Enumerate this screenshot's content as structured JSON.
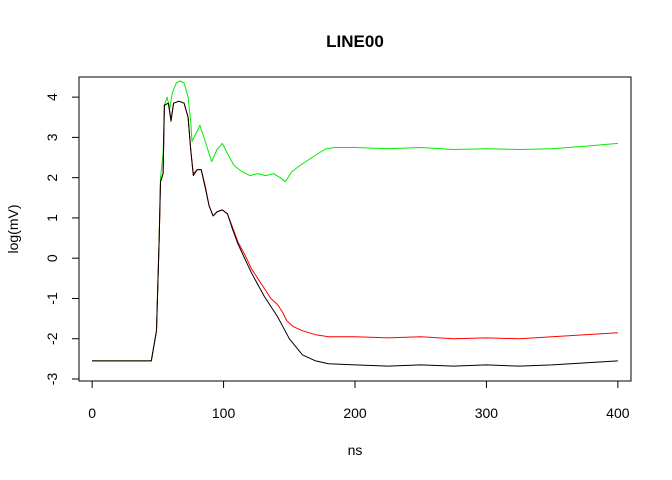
{
  "chart_data": {
    "type": "line",
    "title": "LINE00",
    "xlabel": "ns",
    "ylabel": "log(mV)",
    "xlim": [
      -10,
      410
    ],
    "ylim": [
      -3.05,
      4.5
    ],
    "xticks": [
      0,
      100,
      200,
      300,
      400
    ],
    "yticks": [
      -3,
      -2,
      -1,
      0,
      1,
      2,
      3,
      4
    ],
    "grid": false,
    "legend": "none",
    "series": [
      {
        "color": "#00ee00",
        "points": [
          [
            0,
            -2.55
          ],
          [
            45,
            -2.55
          ],
          [
            49,
            -1.8
          ],
          [
            51,
            0.5
          ],
          [
            52,
            2.0
          ],
          [
            54,
            2.6
          ],
          [
            55,
            3.8
          ],
          [
            57,
            4.0
          ],
          [
            59,
            3.7
          ],
          [
            61,
            4.1
          ],
          [
            64,
            4.35
          ],
          [
            67,
            4.4
          ],
          [
            70,
            4.35
          ],
          [
            73,
            4.0
          ],
          [
            75,
            3.4
          ],
          [
            76,
            2.9
          ],
          [
            79,
            3.1
          ],
          [
            82,
            3.3
          ],
          [
            85,
            3.0
          ],
          [
            88,
            2.7
          ],
          [
            91,
            2.4
          ],
          [
            95,
            2.7
          ],
          [
            99,
            2.85
          ],
          [
            103,
            2.6
          ],
          [
            108,
            2.3
          ],
          [
            114,
            2.15
          ],
          [
            120,
            2.05
          ],
          [
            126,
            2.1
          ],
          [
            132,
            2.05
          ],
          [
            138,
            2.1
          ],
          [
            143,
            2.0
          ],
          [
            147,
            1.9
          ],
          [
            152,
            2.15
          ],
          [
            158,
            2.3
          ],
          [
            165,
            2.45
          ],
          [
            172,
            2.6
          ],
          [
            178,
            2.72
          ],
          [
            185,
            2.75
          ],
          [
            200,
            2.75
          ],
          [
            225,
            2.72
          ],
          [
            250,
            2.75
          ],
          [
            275,
            2.7
          ],
          [
            300,
            2.72
          ],
          [
            325,
            2.7
          ],
          [
            350,
            2.72
          ],
          [
            375,
            2.78
          ],
          [
            400,
            2.85
          ]
        ]
      },
      {
        "color": "#ff0000",
        "points": [
          [
            0,
            -2.55
          ],
          [
            45,
            -2.55
          ],
          [
            49,
            -1.8
          ],
          [
            51,
            0.5
          ],
          [
            52,
            1.9
          ],
          [
            54,
            2.1
          ],
          [
            55,
            3.8
          ],
          [
            58,
            3.85
          ],
          [
            60,
            3.45
          ],
          [
            62,
            3.85
          ],
          [
            66,
            3.9
          ],
          [
            70,
            3.85
          ],
          [
            73,
            3.5
          ],
          [
            75,
            2.7
          ],
          [
            77,
            2.1
          ],
          [
            80,
            2.2
          ],
          [
            83,
            2.2
          ],
          [
            86,
            1.8
          ],
          [
            89,
            1.3
          ],
          [
            92,
            1.05
          ],
          [
            95,
            1.15
          ],
          [
            99,
            1.2
          ],
          [
            103,
            1.1
          ],
          [
            107,
            0.75
          ],
          [
            111,
            0.4
          ],
          [
            116,
            0.1
          ],
          [
            121,
            -0.25
          ],
          [
            126,
            -0.5
          ],
          [
            131,
            -0.75
          ],
          [
            136,
            -1.0
          ],
          [
            141,
            -1.15
          ],
          [
            145,
            -1.35
          ],
          [
            148,
            -1.55
          ],
          [
            153,
            -1.7
          ],
          [
            160,
            -1.8
          ],
          [
            170,
            -1.9
          ],
          [
            180,
            -1.95
          ],
          [
            200,
            -1.95
          ],
          [
            225,
            -1.98
          ],
          [
            250,
            -1.95
          ],
          [
            275,
            -2.0
          ],
          [
            300,
            -1.98
          ],
          [
            325,
            -2.0
          ],
          [
            350,
            -1.95
          ],
          [
            375,
            -1.9
          ],
          [
            400,
            -1.85
          ]
        ]
      },
      {
        "color": "#000000",
        "points": [
          [
            0,
            -2.55
          ],
          [
            45,
            -2.55
          ],
          [
            49,
            -1.8
          ],
          [
            51,
            0.5
          ],
          [
            52,
            1.9
          ],
          [
            54,
            2.1
          ],
          [
            55,
            3.8
          ],
          [
            58,
            3.85
          ],
          [
            60,
            3.4
          ],
          [
            62,
            3.85
          ],
          [
            66,
            3.9
          ],
          [
            70,
            3.85
          ],
          [
            73,
            3.5
          ],
          [
            75,
            2.7
          ],
          [
            77,
            2.05
          ],
          [
            80,
            2.2
          ],
          [
            83,
            2.2
          ],
          [
            86,
            1.75
          ],
          [
            89,
            1.3
          ],
          [
            92,
            1.05
          ],
          [
            95,
            1.15
          ],
          [
            99,
            1.2
          ],
          [
            103,
            1.1
          ],
          [
            107,
            0.7
          ],
          [
            111,
            0.35
          ],
          [
            116,
            0.0
          ],
          [
            121,
            -0.35
          ],
          [
            126,
            -0.65
          ],
          [
            131,
            -0.95
          ],
          [
            136,
            -1.2
          ],
          [
            141,
            -1.45
          ],
          [
            146,
            -1.75
          ],
          [
            150,
            -2.0
          ],
          [
            155,
            -2.2
          ],
          [
            160,
            -2.4
          ],
          [
            170,
            -2.55
          ],
          [
            180,
            -2.62
          ],
          [
            200,
            -2.65
          ],
          [
            225,
            -2.68
          ],
          [
            250,
            -2.65
          ],
          [
            275,
            -2.68
          ],
          [
            300,
            -2.65
          ],
          [
            325,
            -2.68
          ],
          [
            350,
            -2.65
          ],
          [
            375,
            -2.6
          ],
          [
            400,
            -2.55
          ]
        ]
      }
    ]
  }
}
